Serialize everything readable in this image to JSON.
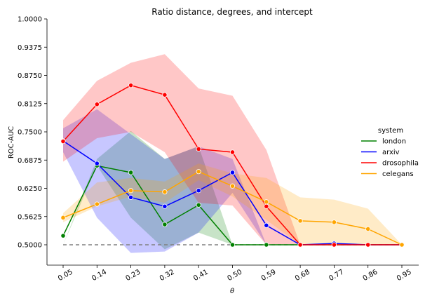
{
  "chart_data": {
    "type": "line",
    "title": "Ratio distance, degrees, and intercept",
    "xlabel": "θ",
    "ylabel": "ROC-AUC",
    "x": [
      "0.05",
      "0.14",
      "0.23",
      "0.32",
      "0.41",
      "0.50",
      "0.59",
      "0.68",
      "0.77",
      "0.86",
      "0.95"
    ],
    "yticks": [
      "0.5000",
      "0.5625",
      "0.6250",
      "0.6875",
      "0.7500",
      "0.8125",
      "0.8750",
      "0.9375",
      "1.0000"
    ],
    "ylim": [
      0.477,
      1.0
    ],
    "baseline": 0.5,
    "legend": {
      "title": "system",
      "position": "right"
    },
    "grid": false,
    "series": [
      {
        "name": "london",
        "color": "#008000",
        "values": [
          0.52,
          0.675,
          0.66,
          0.545,
          0.588,
          0.5,
          0.5,
          0.5,
          0.5,
          0.5,
          0.5
        ],
        "upper": [
          0.5,
          0.69,
          0.752,
          0.69,
          0.718,
          0.5,
          0.5,
          0.5,
          0.5,
          0.5,
          0.5
        ],
        "lower": [
          0.5,
          0.675,
          0.56,
          0.49,
          0.527,
          0.5,
          0.5,
          0.5,
          0.5,
          0.5,
          0.5
        ]
      },
      {
        "name": "arxiv",
        "color": "#0000ff",
        "values": [
          0.73,
          0.68,
          0.605,
          0.585,
          0.62,
          0.66,
          0.543,
          0.5,
          0.503,
          0.5,
          0.5
        ],
        "upper": [
          0.758,
          0.8,
          0.745,
          0.69,
          0.718,
          0.69,
          0.5,
          0.5,
          0.503,
          0.5,
          0.5
        ],
        "lower": [
          0.705,
          0.56,
          0.482,
          0.485,
          0.527,
          0.615,
          0.5,
          0.5,
          0.503,
          0.5,
          0.5
        ]
      },
      {
        "name": "drosophila",
        "color": "#ff0000",
        "values": [
          0.729,
          0.811,
          0.853,
          0.832,
          0.712,
          0.705,
          0.585,
          0.5,
          0.5,
          0.5,
          0.5
        ],
        "upper": [
          0.776,
          0.863,
          0.903,
          0.922,
          0.846,
          0.83,
          0.71,
          0.5,
          0.5,
          0.5,
          0.5
        ],
        "lower": [
          0.684,
          0.736,
          0.75,
          0.705,
          0.593,
          0.587,
          0.5,
          0.5,
          0.5,
          0.5,
          0.5
        ]
      },
      {
        "name": "celegans",
        "color": "#ffa500",
        "values": [
          0.56,
          0.59,
          0.62,
          0.617,
          0.662,
          0.63,
          0.595,
          0.553,
          0.55,
          0.535,
          0.5
        ],
        "upper": [
          0.57,
          0.638,
          0.648,
          0.64,
          0.68,
          0.658,
          0.648,
          0.605,
          0.6,
          0.58,
          0.5
        ],
        "lower": [
          0.55,
          0.585,
          0.607,
          0.593,
          0.643,
          0.607,
          0.555,
          0.5,
          0.5,
          0.5,
          0.5
        ]
      }
    ]
  }
}
